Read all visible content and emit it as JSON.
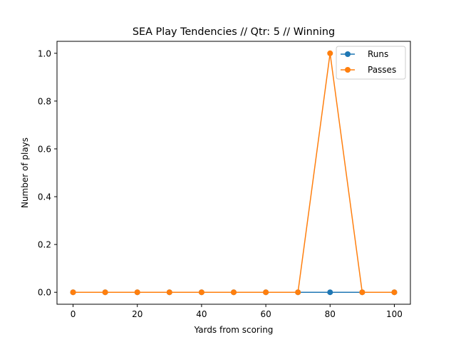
{
  "chart_data": {
    "type": "line",
    "title": "SEA Play Tendencies // Qtr: 5 // Winning",
    "xlabel": "Yards from scoring",
    "ylabel": "Number of plays",
    "x": [
      0,
      10,
      20,
      30,
      40,
      50,
      60,
      70,
      80,
      90,
      100
    ],
    "series": [
      {
        "name": "Runs",
        "color": "#1f77b4",
        "values": [
          0,
          0,
          0,
          0,
          0,
          0,
          0,
          0,
          0,
          0,
          0
        ]
      },
      {
        "name": "Passes",
        "color": "#ff7f0e",
        "values": [
          0,
          0,
          0,
          0,
          0,
          0,
          0,
          0,
          1,
          0,
          0
        ]
      }
    ],
    "xlim": [
      -5,
      105
    ],
    "ylim": [
      -0.05,
      1.05
    ],
    "xticks": [
      0,
      20,
      40,
      60,
      80,
      100
    ],
    "yticks": [
      0.0,
      0.2,
      0.4,
      0.6,
      0.8,
      1.0
    ],
    "ytick_labels": [
      "0.0",
      "0.2",
      "0.4",
      "0.6",
      "0.8",
      "1.0"
    ],
    "grid": false,
    "legend_position": "top-right",
    "marker": "circle"
  }
}
